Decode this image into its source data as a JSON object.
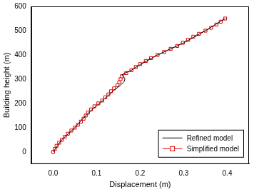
{
  "chart_data": {
    "type": "line",
    "x_label": "Displacement (m)",
    "y_label": "Building height (m)",
    "xlim": [
      -0.05,
      0.45
    ],
    "xticks": [
      {
        "value": 0,
        "label": "0.0"
      },
      {
        "value": 0.1,
        "label": "0.1"
      },
      {
        "value": 0.2,
        "label": "0.2"
      },
      {
        "value": 0.3,
        "label": "0.3"
      },
      {
        "value": 0.4,
        "label": "0.4"
      }
    ],
    "ylim": [
      -50,
      600
    ],
    "yticks": [
      0,
      100,
      200,
      300,
      400,
      500,
      600
    ],
    "grid": false,
    "legend": "lower right",
    "series": [
      {
        "name": "Refined model",
        "color": "#000000",
        "marker": "none",
        "line_style": "solid",
        "x": [
          0,
          0.02,
          0.05,
          0.075,
          0.09,
          0.1,
          0.11,
          0.125,
          0.14,
          0.155,
          0.163,
          0.165,
          0.162,
          0.158,
          0.165,
          0.18,
          0.2,
          0.24,
          0.3,
          0.35,
          0.395
        ],
        "values": [
          0,
          50,
          100,
          150,
          175,
          190,
          205,
          230,
          255,
          275,
          290,
          300,
          310,
          318,
          325,
          337,
          360,
          400,
          450,
          500,
          550
        ]
      },
      {
        "name": "Simplified model",
        "color": "#e00000",
        "marker": "square",
        "line_style": "solid",
        "x": [
          0,
          0.004,
          0.008,
          0.014,
          0.02,
          0.027,
          0.034,
          0.042,
          0.05,
          0.057,
          0.064,
          0.07,
          0.075,
          0.08,
          0.087,
          0.095,
          0.104,
          0.113,
          0.12,
          0.127,
          0.133,
          0.14,
          0.148,
          0.152,
          0.155,
          0.158,
          0.168,
          0.18,
          0.19,
          0.2,
          0.213,
          0.225,
          0.24,
          0.255,
          0.27,
          0.285,
          0.298,
          0.31,
          0.322,
          0.335,
          0.35,
          0.363,
          0.375,
          0.385,
          0.395
        ],
        "values": [
          0,
          12,
          25,
          38,
          50,
          62,
          75,
          88,
          100,
          112,
          125,
          137,
          150,
          162,
          175,
          188,
          200,
          212,
          225,
          237,
          250,
          262,
          275,
          287,
          300,
          312,
          325,
          337,
          350,
          362,
          375,
          387,
          400,
          412,
          425,
          437,
          450,
          462,
          475,
          487,
          500,
          512,
          525,
          537,
          550
        ]
      }
    ]
  }
}
